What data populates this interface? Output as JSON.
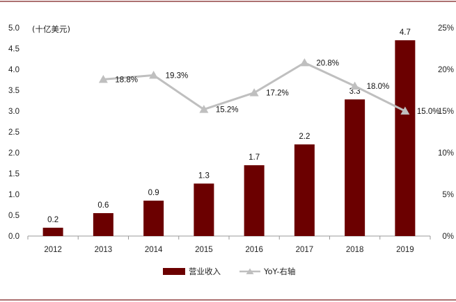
{
  "chart_data": {
    "type": "bar",
    "categories": [
      "2012",
      "2013",
      "2014",
      "2015",
      "2016",
      "2017",
      "2018",
      "2019"
    ],
    "series": [
      {
        "name": "营业收入",
        "type": "bar",
        "axis": "left",
        "color": "#6b0000",
        "values": [
          0.2,
          0.55,
          0.85,
          1.26,
          1.7,
          2.2,
          3.28,
          4.7
        ],
        "labels": [
          "0.2",
          "0.6",
          "0.9",
          "1.3",
          "1.7",
          "2.2",
          "3.3",
          "4.7"
        ]
      },
      {
        "name": "YoY-右轴",
        "type": "line",
        "axis": "right",
        "color": "#bfbfbf",
        "x": [
          "2013",
          "2014",
          "2015",
          "2016",
          "2017",
          "2018",
          "2019"
        ],
        "values": [
          18.8,
          19.3,
          15.2,
          17.2,
          20.8,
          18.0,
          15.0
        ],
        "labels": [
          "18.8%",
          "19.3%",
          "15.2%",
          "17.2%",
          "20.8%",
          "18.0%",
          "15.0%"
        ]
      }
    ],
    "unit_label": "(十亿美元)",
    "ylim": [
      0,
      5.0
    ],
    "y_ticks": [
      "0.0",
      "0.5",
      "1.0",
      "1.5",
      "2.0",
      "2.5",
      "3.0",
      "3.5",
      "4.0",
      "4.5",
      "5.0"
    ],
    "y2lim": [
      0,
      25
    ],
    "y2_ticks": [
      "0%",
      "5%",
      "10%",
      "15%",
      "20%",
      "25%"
    ],
    "grid": false,
    "legend_position": "bottom"
  }
}
